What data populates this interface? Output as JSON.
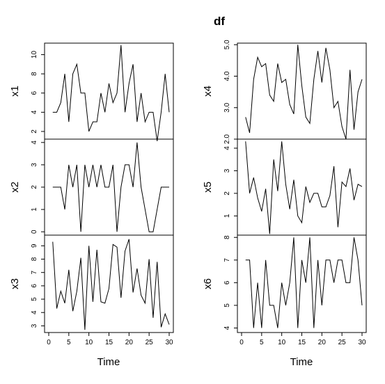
{
  "chart_data": {
    "type": "line",
    "title": "df",
    "xlabel": "Time",
    "x": [
      1,
      2,
      3,
      4,
      5,
      6,
      7,
      8,
      9,
      10,
      11,
      12,
      13,
      14,
      15,
      16,
      17,
      18,
      19,
      20,
      21,
      22,
      23,
      24,
      25,
      26,
      27,
      28,
      29,
      30
    ],
    "xlim": [
      0,
      30
    ],
    "xticks": [
      0,
      5,
      10,
      15,
      20,
      25,
      30
    ],
    "grid": false,
    "panels": [
      {
        "name": "x1",
        "ylim": [
          1.2,
          11.2
        ],
        "yticks": [
          2,
          4,
          6,
          8,
          10
        ],
        "values": [
          4,
          4,
          5,
          8,
          3,
          8,
          9,
          6,
          6,
          2,
          3,
          3,
          6,
          4,
          7,
          5,
          6,
          11,
          4,
          7,
          9,
          3,
          6,
          3,
          4,
          4,
          1,
          4,
          8,
          4
        ]
      },
      {
        "name": "x2",
        "ylim": [
          -0.15,
          4.15
        ],
        "yticks": [
          0,
          1,
          2,
          3,
          4
        ],
        "values": [
          2,
          2,
          2,
          1,
          3,
          2,
          3,
          0,
          3,
          2,
          3,
          2,
          3,
          2,
          2,
          3,
          0,
          2,
          3,
          3,
          2,
          4,
          2,
          1,
          0,
          0,
          1,
          2,
          2,
          2
        ]
      },
      {
        "name": "x3",
        "ylim": [
          2.5,
          9.8
        ],
        "yticks": [
          3,
          4,
          5,
          6,
          7,
          8,
          9
        ],
        "values": [
          9.3,
          4.3,
          5.6,
          4.7,
          7.2,
          4.1,
          5.6,
          8.1,
          2.7,
          9.0,
          4.8,
          8.7,
          4.8,
          4.7,
          5.8,
          9.1,
          8.9,
          5.1,
          8.6,
          9.5,
          5.5,
          7.3,
          5.3,
          4.7,
          8.0,
          3.6,
          7.8,
          2.9,
          3.9,
          3.1
        ]
      },
      {
        "name": "x4",
        "ylim": [
          2.0,
          5.05
        ],
        "yticks": [
          2.0,
          3.0,
          4.0,
          5.0
        ],
        "yticklabels": [
          "2.0",
          "3.0",
          "4.0",
          "5.0"
        ],
        "values": [
          2.7,
          2.2,
          3.9,
          4.6,
          4.3,
          4.4,
          3.4,
          3.2,
          4.4,
          3.8,
          3.9,
          3.1,
          2.8,
          5.0,
          3.7,
          2.7,
          2.5,
          3.9,
          4.8,
          3.8,
          4.9,
          4.2,
          3.0,
          3.2,
          2.4,
          2.0,
          4.2,
          2.3,
          3.5,
          3.9
        ]
      },
      {
        "name": "x5",
        "ylim": [
          0.15,
          4.4
        ],
        "yticks": [
          1,
          2,
          3,
          4
        ],
        "values": [
          4.3,
          2.0,
          2.7,
          1.8,
          1.2,
          2.2,
          0.2,
          3.5,
          2.1,
          4.3,
          2.4,
          1.3,
          2.6,
          1.0,
          0.7,
          2.3,
          1.6,
          2.0,
          2.0,
          1.4,
          1.4,
          1.9,
          3.2,
          0.5,
          2.5,
          2.3,
          3.1,
          1.7,
          2.4,
          2.3
        ]
      },
      {
        "name": "x6",
        "ylim": [
          3.8,
          8.1
        ],
        "yticks": [
          4,
          5,
          6,
          7,
          8
        ],
        "values": [
          7,
          7,
          4,
          6,
          4,
          7,
          5,
          5,
          4,
          6,
          5,
          6,
          8,
          4,
          7,
          6,
          8,
          4,
          7,
          5,
          7,
          7,
          6,
          7,
          7,
          6,
          6,
          8,
          7,
          5
        ]
      }
    ]
  }
}
